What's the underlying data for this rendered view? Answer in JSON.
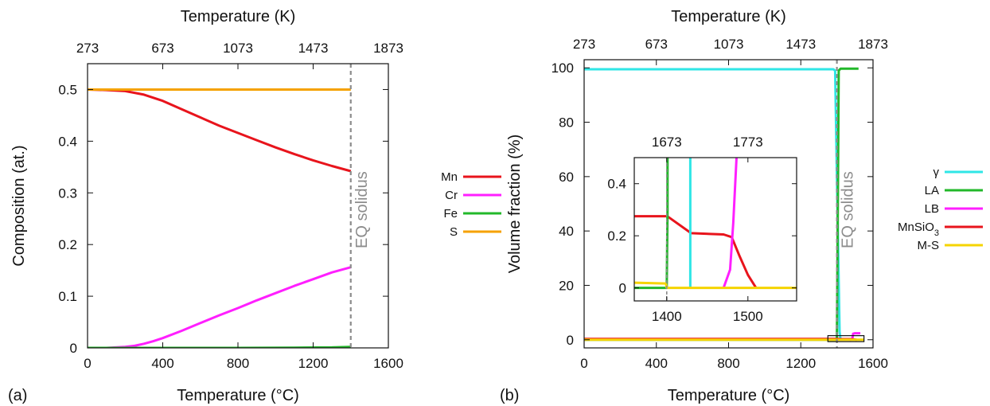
{
  "colors": {
    "Mn": "#e8141c",
    "Cr": "#ff1fff",
    "Fe": "#22b82a",
    "S": "#f5a100",
    "gamma": "#2fe6e6",
    "LA": "#22b82a",
    "LB": "#ff1fff",
    "MnSiO3": "#e8141c",
    "MS": "#f5d400",
    "solidus": "#8c8c8c"
  },
  "chart_data": [
    {
      "id": "a",
      "type": "line",
      "panel_label": "(a)",
      "xlabel": "Temperature (°C)",
      "x2label": "Temperature (K)",
      "ylabel": "Composition (at.)",
      "xlim": [
        0,
        1600
      ],
      "ylim": [
        0,
        0.55
      ],
      "xticks": [
        "0",
        "400",
        "800",
        "1200",
        "1600"
      ],
      "xtick_values": [
        0,
        400,
        800,
        1200,
        1600
      ],
      "x2ticks": [
        "273",
        "673",
        "1073",
        "1473",
        "1873"
      ],
      "x2tick_values": [
        0,
        400,
        800,
        1200,
        1600
      ],
      "yticks": [
        "0",
        "0.1",
        "0.2",
        "0.3",
        "0.4",
        "0.5"
      ],
      "ytick_values": [
        0,
        0.1,
        0.2,
        0.3,
        0.4,
        0.5
      ],
      "vline": {
        "x": 1400,
        "label": "EQ solidus"
      },
      "legend_position": "right",
      "series": [
        {
          "name": "Mn",
          "color_key": "Mn",
          "x": [
            0,
            100,
            200,
            300,
            400,
            500,
            600,
            700,
            800,
            900,
            1000,
            1100,
            1200,
            1300,
            1400
          ],
          "y": [
            0.5,
            0.499,
            0.497,
            0.49,
            0.478,
            0.462,
            0.446,
            0.43,
            0.416,
            0.402,
            0.388,
            0.375,
            0.363,
            0.352,
            0.342
          ]
        },
        {
          "name": "Cr",
          "color_key": "Cr",
          "x": [
            0,
            100,
            200,
            250,
            300,
            350,
            400,
            500,
            600,
            700,
            800,
            900,
            1000,
            1100,
            1200,
            1300,
            1400
          ],
          "y": [
            0.0,
            0.0,
            0.002,
            0.004,
            0.008,
            0.013,
            0.019,
            0.033,
            0.048,
            0.063,
            0.077,
            0.092,
            0.106,
            0.12,
            0.133,
            0.146,
            0.156
          ]
        },
        {
          "name": "Fe",
          "color_key": "Fe",
          "x": [
            0,
            800,
            1100,
            1300,
            1400
          ],
          "y": [
            0.0,
            0.0,
            0.0005,
            0.001,
            0.002
          ]
        },
        {
          "name": "S",
          "color_key": "S",
          "x": [
            0,
            1400
          ],
          "y": [
            0.5,
            0.5
          ]
        }
      ]
    },
    {
      "id": "b",
      "type": "line",
      "panel_label": "(b)",
      "xlabel": "Temperature (°C)",
      "x2label": "Temperature (K)",
      "ylabel": "Volume fraction (%)",
      "xlim": [
        0,
        1600
      ],
      "ylim": [
        -3,
        103
      ],
      "xticks": [
        "0",
        "400",
        "800",
        "1200",
        "1600"
      ],
      "xtick_values": [
        0,
        400,
        800,
        1200,
        1600
      ],
      "x2ticks": [
        "273",
        "673",
        "1073",
        "1473",
        "1873"
      ],
      "x2tick_values": [
        0,
        400,
        800,
        1200,
        1600
      ],
      "yticks": [
        "0",
        "20",
        "40",
        "60",
        "80",
        "100"
      ],
      "ytick_values": [
        0,
        20,
        40,
        60,
        80,
        100
      ],
      "vline": {
        "x": 1400,
        "label": "EQ solidus"
      },
      "legend_position": "right",
      "zoom_box": {
        "x": [
          1350,
          1550
        ],
        "y": [
          -0.7,
          1.5
        ]
      },
      "series": [
        {
          "name": "γ",
          "color_key": "gamma",
          "x": [
            0,
            1380,
            1390,
            1400,
            1415,
            1420
          ],
          "y": [
            99.5,
            99.5,
            99.0,
            60.0,
            3.0,
            0.0
          ]
        },
        {
          "name": "LA",
          "color_key": "LA",
          "x": [
            0,
            1395,
            1400,
            1405,
            1410,
            1420,
            1520
          ],
          "y": [
            0.0,
            0.0,
            0.2,
            50.0,
            99.0,
            99.7,
            99.7
          ]
        },
        {
          "name": "LB",
          "color_key": "LB",
          "x": [
            1470,
            1480,
            1486,
            1490,
            1500,
            1530
          ],
          "y": [
            0.0,
            0.06,
            0.4,
            2.2,
            2.4,
            2.4
          ]
        },
        {
          "name": "MnSiO",
          "name_sub": "3",
          "color_key": "MnSiO3",
          "x": [
            0,
            1400,
            1405,
            1430,
            1480,
            1485,
            1500,
            1510
          ],
          "y": [
            0.28,
            0.28,
            0.275,
            0.22,
            0.21,
            0.2,
            0.08,
            0.0
          ]
        },
        {
          "name": "M-S",
          "color_key": "MS",
          "x": [
            0,
            1400,
            1405,
            1550
          ],
          "y": [
            0.02,
            0.02,
            0.0,
            0.0
          ]
        }
      ],
      "inset": {
        "xlim": [
          1360,
          1560
        ],
        "ylim": [
          -0.05,
          0.5
        ],
        "xticks": [
          "1400",
          "1500"
        ],
        "xtick_values": [
          1400,
          1500
        ],
        "x2ticks": [
          "1673",
          "1773"
        ],
        "x2tick_values": [
          1400,
          1500
        ],
        "yticks": [
          "0",
          "0.2",
          "0.4"
        ],
        "ytick_values": [
          0,
          0.2,
          0.4
        ],
        "series": [
          {
            "color_key": "MnSiO3",
            "x": [
              1360,
              1400,
              1403,
              1430,
              1470,
              1480,
              1490,
              1500,
              1510
            ],
            "y": [
              0.275,
              0.275,
              0.27,
              0.21,
              0.205,
              0.195,
              0.12,
              0.05,
              0.0
            ]
          },
          {
            "color_key": "LA",
            "x": [
              1360,
              1399,
              1400,
              1401,
              1401
            ],
            "y": [
              0.0,
              0.0,
              0.0,
              0.3,
              0.5
            ]
          },
          {
            "color_key": "gamma",
            "x": [
              1429,
              1429
            ],
            "y": [
              0.0,
              0.5
            ]
          },
          {
            "color_key": "LB",
            "x": [
              1470,
              1478,
              1482,
              1486
            ],
            "y": [
              0.0,
              0.07,
              0.25,
              0.5
            ]
          },
          {
            "color_key": "MS",
            "x": [
              1360,
              1399,
              1400,
              1560
            ],
            "y": [
              0.02,
              0.017,
              0.0,
              0.0
            ]
          }
        ]
      }
    }
  ]
}
